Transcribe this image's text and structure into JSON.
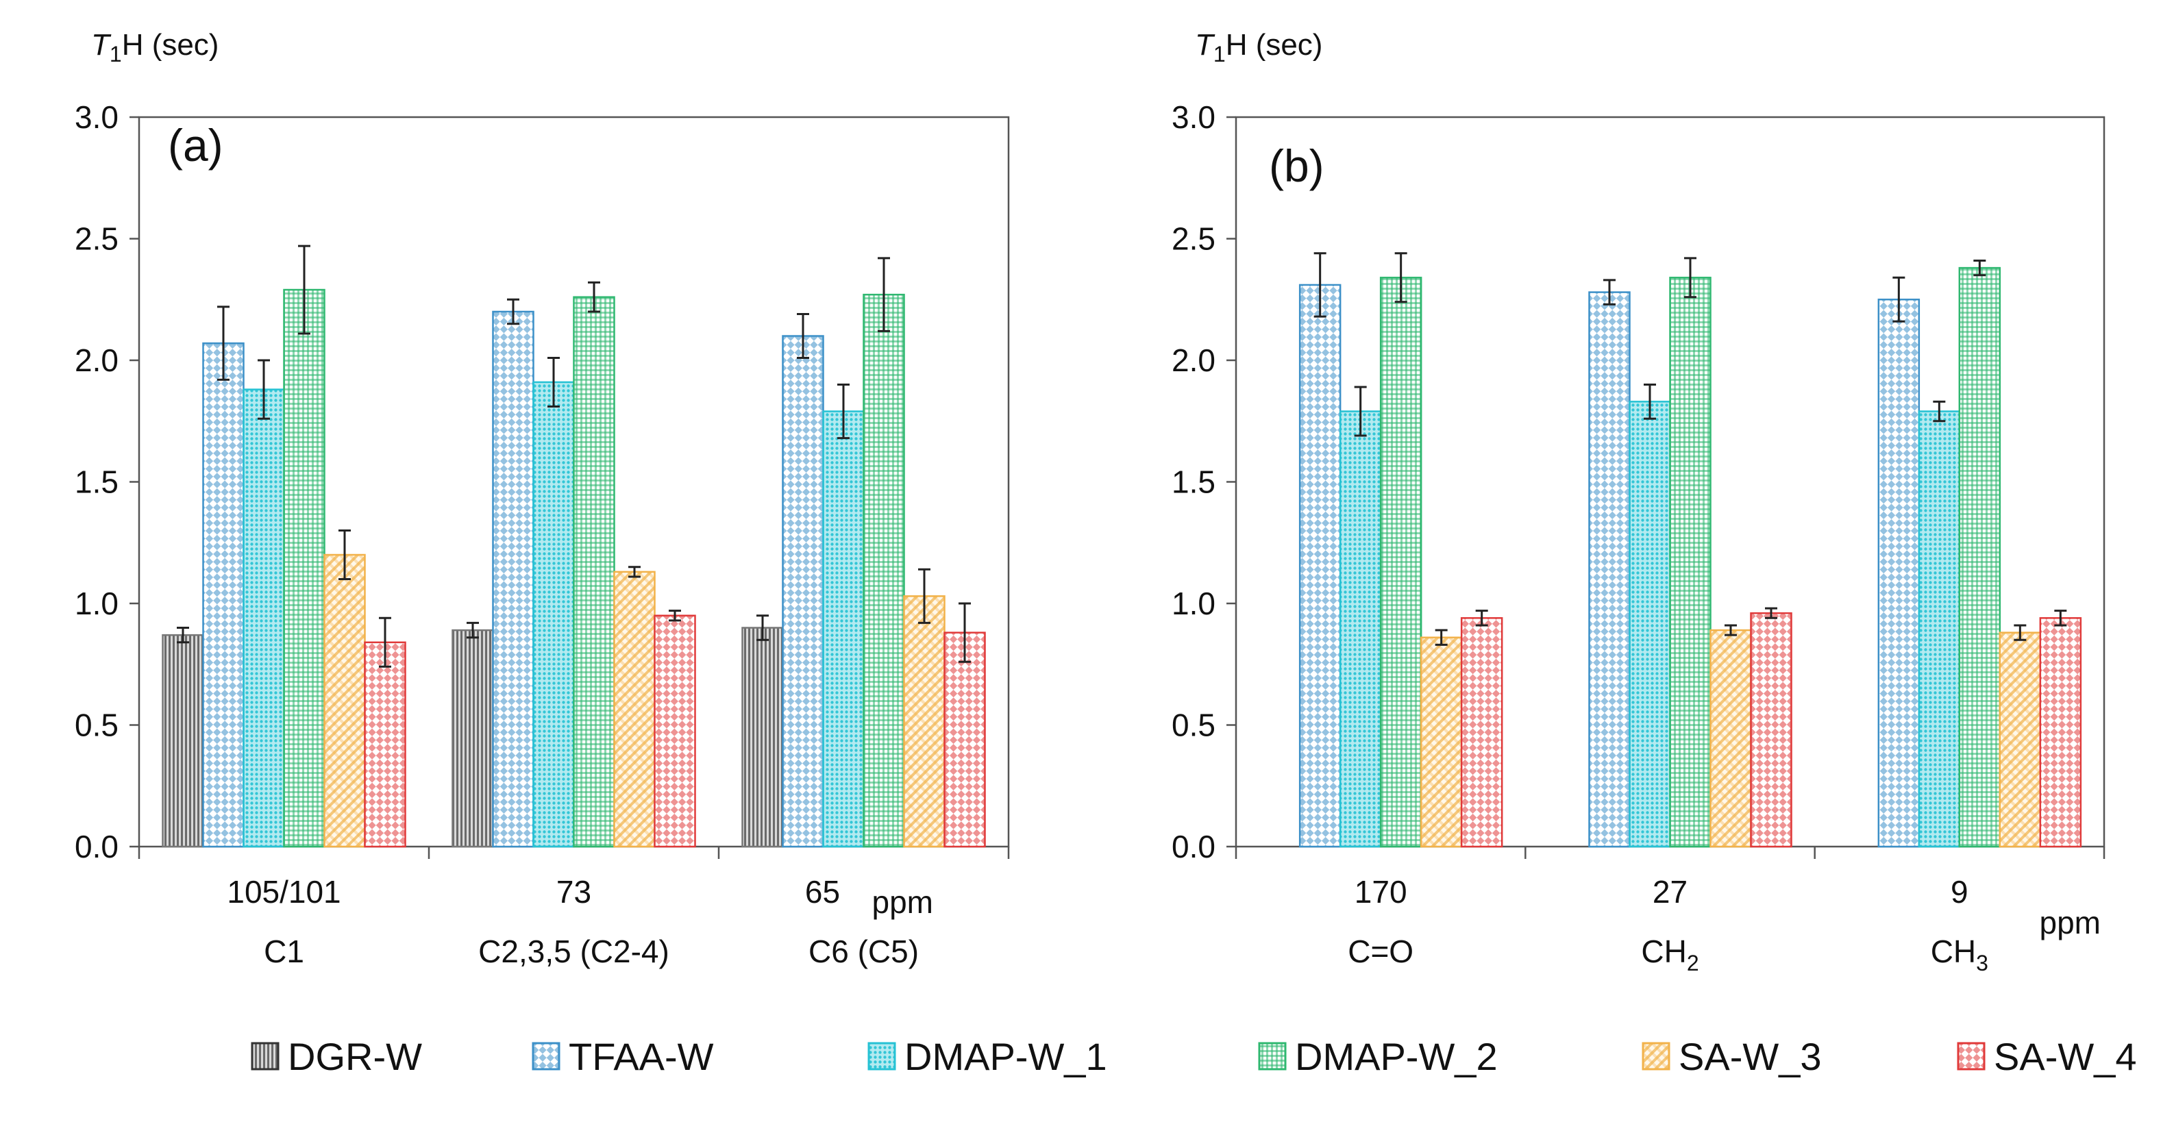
{
  "chart_data": {
    "type": "bar",
    "legend": {
      "position": "bottom",
      "entries": [
        "DGR-W",
        "TFAA-W",
        "DMAP-W_1",
        "DMAP-W_2",
        "SA-W_3",
        "SA-W_4"
      ]
    },
    "series_styles": [
      {
        "name": "DGR-W",
        "color": "#777777",
        "pattern": "vlines"
      },
      {
        "name": "TFAA-W",
        "color": "#3c90c8",
        "pattern": "checker"
      },
      {
        "name": "DMAP-W_1",
        "color": "#26c2d4",
        "pattern": "dots"
      },
      {
        "name": "DMAP-W_2",
        "color": "#2fb870",
        "pattern": "grid"
      },
      {
        "name": "SA-W_3",
        "color": "#f2b24a",
        "pattern": "diag"
      },
      {
        "name": "SA-W_4",
        "color": "#e03a3a",
        "pattern": "checker"
      }
    ],
    "panels": [
      {
        "label": "(a)",
        "ylabel": {
          "symbol": "T",
          "subscript": "1",
          "rest": "H (sec)"
        },
        "ylim": [
          0,
          3.0
        ],
        "yticks": [
          "0.0",
          "0.5",
          "1.0",
          "1.5",
          "2.0",
          "2.5",
          "3.0"
        ],
        "unit_label": "ppm",
        "categories": [
          {
            "ppm": "105/101",
            "name": "C1"
          },
          {
            "ppm": "73",
            "name": "C2,3,5 (C2-4)"
          },
          {
            "ppm": "65",
            "name": "C6 (C5)"
          }
        ],
        "series": [
          {
            "name": "DGR-W",
            "values": [
              0.87,
              0.89,
              0.9
            ],
            "errors": [
              0.03,
              0.03,
              0.05
            ]
          },
          {
            "name": "TFAA-W",
            "values": [
              2.07,
              2.2,
              2.1
            ],
            "errors": [
              0.15,
              0.05,
              0.09
            ]
          },
          {
            "name": "DMAP-W_1",
            "values": [
              1.88,
              1.91,
              1.79
            ],
            "errors": [
              0.12,
              0.1,
              0.11
            ]
          },
          {
            "name": "DMAP-W_2",
            "values": [
              2.29,
              2.26,
              2.27
            ],
            "errors": [
              0.18,
              0.06,
              0.15
            ]
          },
          {
            "name": "SA-W_3",
            "values": [
              1.2,
              1.13,
              1.03
            ],
            "errors": [
              0.1,
              0.02,
              0.11
            ]
          },
          {
            "name": "SA-W_4",
            "values": [
              0.84,
              0.95,
              0.88
            ],
            "errors": [
              0.1,
              0.02,
              0.12
            ]
          }
        ]
      },
      {
        "label": "(b)",
        "ylabel": {
          "symbol": "T",
          "subscript": "1",
          "rest": "H (sec)"
        },
        "ylim": [
          0,
          3.0
        ],
        "yticks": [
          "0.0",
          "0.5",
          "1.0",
          "1.5",
          "2.0",
          "2.5",
          "3.0"
        ],
        "unit_label": "ppm",
        "categories": [
          {
            "ppm": "170",
            "name": "C=O",
            "name_main": "C=O",
            "name_sub": ""
          },
          {
            "ppm": "27",
            "name": "CH2",
            "name_main": "CH",
            "name_sub": "2"
          },
          {
            "ppm": "9",
            "name": "CH3",
            "name_main": "CH",
            "name_sub": "3"
          }
        ],
        "series": [
          {
            "name": "DGR-W",
            "values": [
              null,
              null,
              null
            ],
            "errors": [
              null,
              null,
              null
            ]
          },
          {
            "name": "TFAA-W",
            "values": [
              2.31,
              2.28,
              2.25
            ],
            "errors": [
              0.13,
              0.05,
              0.09
            ]
          },
          {
            "name": "DMAP-W_1",
            "values": [
              1.79,
              1.83,
              1.79
            ],
            "errors": [
              0.1,
              0.07,
              0.04
            ]
          },
          {
            "name": "DMAP-W_2",
            "values": [
              2.34,
              2.34,
              2.38
            ],
            "errors": [
              0.1,
              0.08,
              0.03
            ]
          },
          {
            "name": "SA-W_3",
            "values": [
              0.86,
              0.89,
              0.88
            ],
            "errors": [
              0.03,
              0.02,
              0.03
            ]
          },
          {
            "name": "SA-W_4",
            "values": [
              0.94,
              0.96,
              0.94
            ],
            "errors": [
              0.03,
              0.02,
              0.03
            ]
          }
        ]
      }
    ]
  }
}
